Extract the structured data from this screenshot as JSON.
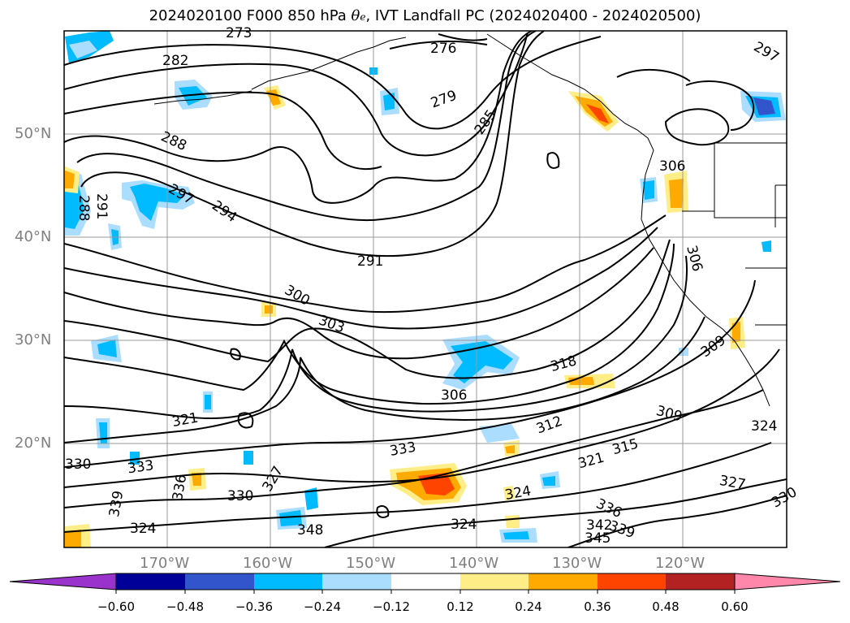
{
  "title": {
    "prefix": "2024020100 F000 850 hPa ",
    "theta": "θ",
    "sub": "e",
    "suffix": ", IVT Landfall PC (2024020400 - 2024020500)"
  },
  "axes": {
    "lat_labels": [
      "50°N",
      "40°N",
      "30°N",
      "20°N"
    ],
    "lon_labels": [
      "170°W",
      "160°W",
      "150°W",
      "140°W",
      "130°W",
      "120°W"
    ]
  },
  "contour_labels": [
    "273",
    "276",
    "279",
    "282",
    "285",
    "288",
    "291",
    "294",
    "297",
    "297",
    "300",
    "303",
    "306",
    "306",
    "306",
    "309",
    "309",
    "312",
    "315",
    "318",
    "321",
    "321",
    "324",
    "324",
    "324",
    "324",
    "327",
    "327",
    "330",
    "330",
    "333",
    "333",
    "336",
    "336",
    "339",
    "339",
    "342",
    "345",
    "348",
    "291",
    "288",
    "330"
  ],
  "colorbar": {
    "ticks": [
      "−0.60",
      "−0.48",
      "−0.36",
      "−0.24",
      "−0.12",
      "0.12",
      "0.24",
      "0.36",
      "0.48",
      "0.60"
    ],
    "colors": [
      "#9933cc",
      "#000099",
      "#3355cc",
      "#00bbff",
      "#aaddff",
      "#ffffff",
      "#ffee88",
      "#ffaa00",
      "#ff4400",
      "#b22222",
      "#ff88aa"
    ]
  }
}
